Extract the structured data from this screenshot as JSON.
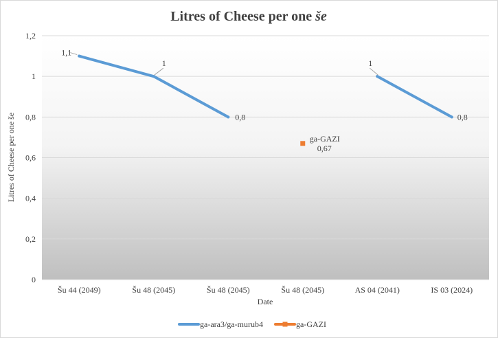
{
  "chart_data": {
    "type": "line",
    "title_main": "Litres of Cheese per one ",
    "title_italic": "še",
    "xlabel": "Date",
    "ylabel": "Litres of Cheese per one še",
    "ylim": [
      0,
      1.2
    ],
    "yticks": [
      "0",
      "0,2",
      "0,4",
      "0,6",
      "0,8",
      "1",
      "1,2"
    ],
    "categories": [
      "Šu 44 (2049)",
      "Šu 48 (2045)",
      "Šu 48 (2045)",
      "Šu 48 (2045)",
      "AS 04 (2041)",
      "IS 03 (2024)"
    ],
    "grid": true,
    "legend_position": "bottom",
    "series": [
      {
        "name": "ga-ara3/ga-murub4",
        "color": "#5b9bd5",
        "marker": "none",
        "values": [
          1.1,
          1,
          0.8,
          null,
          1,
          0.8
        ],
        "labels": [
          "1,1",
          "1",
          "0,8",
          null,
          "1",
          "0,8"
        ]
      },
      {
        "name": "ga-GAZI",
        "color": "#ed7d31",
        "marker": "square",
        "values": [
          null,
          null,
          null,
          0.67,
          null,
          null
        ],
        "labels": [
          null,
          null,
          null,
          "0,67",
          null,
          null
        ],
        "point_names": [
          null,
          null,
          null,
          "ga-GAZI",
          null,
          null
        ]
      }
    ]
  }
}
